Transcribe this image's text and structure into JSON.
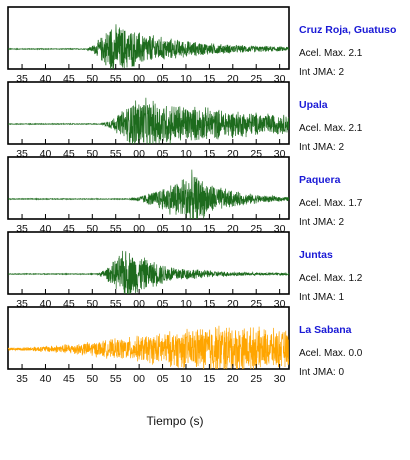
{
  "chart_data": {
    "type": "line",
    "xlabel": "Tiempo (s)",
    "x_tick_labels": [
      "35",
      "40",
      "45",
      "50",
      "55",
      "00",
      "05",
      "10",
      "15",
      "20",
      "25",
      "30"
    ],
    "accel_prefix": "Acel. Max.",
    "jma_prefix": "Int JMA:",
    "stations": [
      {
        "name": "Cruz Roja, Guatuso",
        "accel_max": "2.1",
        "int_jma": "2",
        "color": "#1d6b1d",
        "onset": 49,
        "peak": 54,
        "peak_amp": 0.95,
        "decay": 13
      },
      {
        "name": "Upala",
        "accel_max": "2.1",
        "int_jma": "2",
        "color": "#1d6b1d",
        "onset": 52,
        "peak": 59,
        "peak_amp": 0.95,
        "decay": 30
      },
      {
        "name": "Paquera",
        "accel_max": "1.7",
        "int_jma": "2",
        "color": "#1d6b1d",
        "onset": 58,
        "peak": 71,
        "peak_amp": 1.0,
        "decay": 7
      },
      {
        "name": "Juntas",
        "accel_max": "1.2",
        "int_jma": "1",
        "color": "#1d6b1d",
        "onset": 51,
        "peak": 57,
        "peak_amp": 0.95,
        "decay": 8
      },
      {
        "name": "La Sabana",
        "accel_max": "0.0",
        "int_jma": "0",
        "color": "#ffa500",
        "onset": 32,
        "peak": 76,
        "peak_amp": 0.9,
        "decay": 50
      }
    ]
  }
}
